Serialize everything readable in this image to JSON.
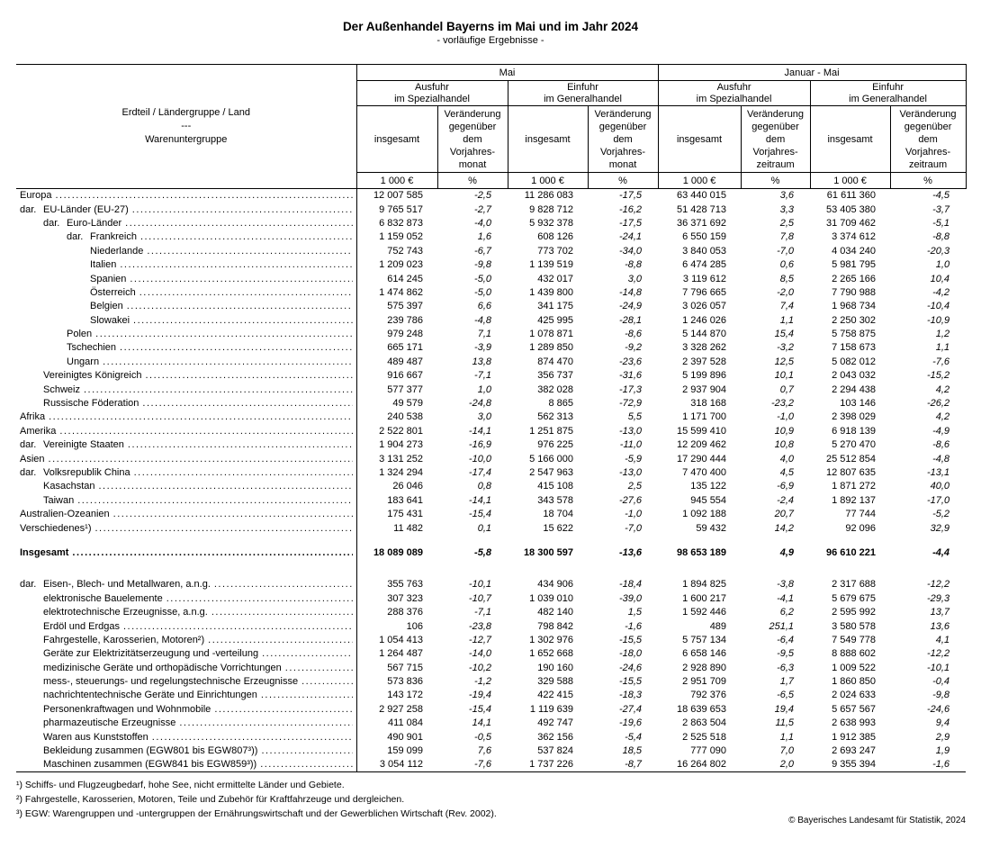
{
  "title": "Der Außenhandel Bayerns im Mai und im Jahr 2024",
  "subtitle": "- vorläufige Ergebnisse -",
  "table": {
    "stub": {
      "line1": "Erdteil / Ländergruppe / Land",
      "line2": "---",
      "line3": "Warenuntergruppe"
    },
    "insgesamt_header": "insgesamt",
    "units": {
      "amount": "1 000 €",
      "percent": "%"
    },
    "col_groups": [
      {
        "period": "Mai",
        "flows": [
          "Ausfuhr\nim Spezialhandel",
          "Einfuhr\nim Generalhandel"
        ],
        "change_header": "Veränderung\ngegenüber\ndem\nVorjahres-\nmonat"
      },
      {
        "period": "Januar - Mai",
        "flows": [
          "Ausfuhr\nim Spezialhandel",
          "Einfuhr\nim Generalhandel"
        ],
        "change_header": "Veränderung\ngegenüber\ndem\nVorjahres-\nzeitraum"
      }
    ],
    "country_rows": [
      {
        "indent": 0,
        "dar": false,
        "label": "Europa",
        "values": [
          "12 007 585",
          "-2,5",
          "11 286 083",
          "-17,5",
          "63 440 015",
          "3,6",
          "61 611 360",
          "-4,5"
        ]
      },
      {
        "indent": 1,
        "dar": true,
        "label": "EU-Länder (EU-27)",
        "values": [
          "9 765 517",
          "-2,7",
          "9 828 712",
          "-16,2",
          "51 428 713",
          "3,3",
          "53 405 380",
          "-3,7"
        ]
      },
      {
        "indent": 2,
        "dar": true,
        "label": "Euro-Länder",
        "values": [
          "6 832 873",
          "-4,0",
          "5 932 378",
          "-17,5",
          "36 371 692",
          "2,5",
          "31 709 462",
          "-5,1"
        ]
      },
      {
        "indent": 3,
        "dar": true,
        "label": "Frankreich",
        "values": [
          "1 159 052",
          "1,6",
          "608 126",
          "-24,1",
          "6 550 159",
          "7,8",
          "3 374 612",
          "-8,8"
        ]
      },
      {
        "indent": 3,
        "dar": false,
        "label": "Niederlande",
        "values": [
          "752 743",
          "-6,7",
          "773 702",
          "-34,0",
          "3 840 053",
          "-7,0",
          "4 034 240",
          "-20,3"
        ]
      },
      {
        "indent": 3,
        "dar": false,
        "label": "Italien",
        "values": [
          "1 209 023",
          "-9,8",
          "1 139 519",
          "-8,8",
          "6 474 285",
          "0,6",
          "5 981 795",
          "1,0"
        ]
      },
      {
        "indent": 3,
        "dar": false,
        "label": "Spanien",
        "values": [
          "614 245",
          "-5,0",
          "432 017",
          "3,0",
          "3 119 612",
          "8,5",
          "2 265 166",
          "10,4"
        ]
      },
      {
        "indent": 3,
        "dar": false,
        "label": "Österreich",
        "values": [
          "1 474 862",
          "-5,0",
          "1 439 800",
          "-14,8",
          "7 796 665",
          "-2,0",
          "7 790 988",
          "-4,2"
        ]
      },
      {
        "indent": 3,
        "dar": false,
        "label": "Belgien",
        "values": [
          "575 397",
          "6,6",
          "341 175",
          "-24,9",
          "3 026 057",
          "7,4",
          "1 968 734",
          "-10,4"
        ]
      },
      {
        "indent": 3,
        "dar": false,
        "label": "Slowakei",
        "values": [
          "239 786",
          "-4,8",
          "425 995",
          "-28,1",
          "1 246 026",
          "1,1",
          "2 250 302",
          "-10,9"
        ]
      },
      {
        "indent": 2,
        "dar": false,
        "label": "Polen",
        "values": [
          "979 248",
          "7,1",
          "1 078 871",
          "-8,6",
          "5 144 870",
          "15,4",
          "5 758 875",
          "1,2"
        ]
      },
      {
        "indent": 2,
        "dar": false,
        "label": "Tschechien",
        "values": [
          "665 171",
          "-3,9",
          "1 289 850",
          "-9,2",
          "3 328 262",
          "-3,2",
          "7 158 673",
          "1,1"
        ]
      },
      {
        "indent": 2,
        "dar": false,
        "label": "Ungarn",
        "values": [
          "489 487",
          "13,8",
          "874 470",
          "-23,6",
          "2 397 528",
          "12,5",
          "5 082 012",
          "-7,6"
        ]
      },
      {
        "indent": 1,
        "dar": false,
        "label": "Vereinigtes Königreich",
        "values": [
          "916 667",
          "-7,1",
          "356 737",
          "-31,6",
          "5 199 896",
          "10,1",
          "2 043 032",
          "-15,2"
        ]
      },
      {
        "indent": 1,
        "dar": false,
        "label": "Schweiz",
        "values": [
          "577 377",
          "1,0",
          "382 028",
          "-17,3",
          "2 937 904",
          "0,7",
          "2 294 438",
          "4,2"
        ]
      },
      {
        "indent": 1,
        "dar": false,
        "label": "Russische Föderation",
        "values": [
          "49 579",
          "-24,8",
          "8 865",
          "-72,9",
          "318 168",
          "-23,2",
          "103 146",
          "-26,2"
        ]
      },
      {
        "indent": 0,
        "dar": false,
        "label": "Afrika",
        "values": [
          "240 538",
          "3,0",
          "562 313",
          "5,5",
          "1 171 700",
          "-1,0",
          "2 398 029",
          "4,2"
        ]
      },
      {
        "indent": 0,
        "dar": false,
        "label": "Amerika",
        "values": [
          "2 522 801",
          "-14,1",
          "1 251 875",
          "-13,0",
          "15 599 410",
          "10,9",
          "6 918 139",
          "-4,9"
        ]
      },
      {
        "indent": 1,
        "dar": true,
        "label": "Vereinigte Staaten",
        "values": [
          "1 904 273",
          "-16,9",
          "976 225",
          "-11,0",
          "12 209 462",
          "10,8",
          "5 270 470",
          "-8,6"
        ]
      },
      {
        "indent": 0,
        "dar": false,
        "label": "Asien",
        "values": [
          "3 131 252",
          "-10,0",
          "5 166 000",
          "-5,9",
          "17 290 444",
          "4,0",
          "25 512 854",
          "-4,8"
        ]
      },
      {
        "indent": 1,
        "dar": true,
        "label": "Volksrepublik China",
        "values": [
          "1 324 294",
          "-17,4",
          "2 547 963",
          "-13,0",
          "7 470 400",
          "4,5",
          "12 807 635",
          "-13,1"
        ]
      },
      {
        "indent": 1,
        "dar": false,
        "label": "Kasachstan",
        "values": [
          "26 046",
          "0,8",
          "415 108",
          "2,5",
          "135 122",
          "-6,9",
          "1 871 272",
          "40,0"
        ]
      },
      {
        "indent": 1,
        "dar": false,
        "label": "Taiwan",
        "values": [
          "183 641",
          "-14,1",
          "343 578",
          "-27,6",
          "945 554",
          "-2,4",
          "1 892 137",
          "-17,0"
        ]
      },
      {
        "indent": 0,
        "dar": false,
        "label": "Australien-Ozeanien",
        "values": [
          "175 431",
          "-15,4",
          "18 704",
          "-1,0",
          "1 092 188",
          "20,7",
          "77 744",
          "-5,2"
        ]
      },
      {
        "indent": 0,
        "dar": false,
        "label": "Verschiedenes¹)",
        "values": [
          "11 482",
          "0,1",
          "15 622",
          "-7,0",
          "59 432",
          "14,2",
          "92 096",
          "32,9"
        ]
      }
    ],
    "total_row": {
      "indent": 0,
      "dar": false,
      "label": "Insgesamt",
      "values": [
        "18 089 089",
        "-5,8",
        "18 300 597",
        "-13,6",
        "98 653 189",
        "4,9",
        "96 610 221",
        "-4,4"
      ]
    },
    "commodity_rows": [
      {
        "indent": 1,
        "dar": true,
        "label": "Eisen-, Blech- und Metallwaren, a.n.g.",
        "values": [
          "355 763",
          "-10,1",
          "434 906",
          "-18,4",
          "1 894 825",
          "-3,8",
          "2 317 688",
          "-12,2"
        ]
      },
      {
        "indent": 1,
        "dar": false,
        "label": "elektronische Bauelemente",
        "values": [
          "307 323",
          "-10,7",
          "1 039 010",
          "-39,0",
          "1 600 217",
          "-4,1",
          "5 679 675",
          "-29,3"
        ]
      },
      {
        "indent": 1,
        "dar": false,
        "label": "elektrotechnische Erzeugnisse, a.n.g.",
        "values": [
          "288 376",
          "-7,1",
          "482 140",
          "1,5",
          "1 592 446",
          "6,2",
          "2 595 992",
          "13,7"
        ]
      },
      {
        "indent": 1,
        "dar": false,
        "label": "Erdöl und Erdgas",
        "values": [
          "106",
          "-23,8",
          "798 842",
          "-1,6",
          "489",
          "251,1",
          "3 580 578",
          "13,6"
        ]
      },
      {
        "indent": 1,
        "dar": false,
        "label": "Fahrgestelle, Karosserien, Motoren²)",
        "values": [
          "1 054 413",
          "-12,7",
          "1 302 976",
          "-15,5",
          "5 757 134",
          "-6,4",
          "7 549 778",
          "4,1"
        ]
      },
      {
        "indent": 1,
        "dar": false,
        "label": "Geräte zur Elektrizitätserzeugung und -verteilung",
        "values": [
          "1 264 487",
          "-14,0",
          "1 652 668",
          "-18,0",
          "6 658 146",
          "-9,5",
          "8 888 602",
          "-12,2"
        ]
      },
      {
        "indent": 1,
        "dar": false,
        "label": "medizinische Geräte und orthopädische Vorrichtungen",
        "values": [
          "567 715",
          "-10,2",
          "190 160",
          "-24,6",
          "2 928 890",
          "-6,3",
          "1 009 522",
          "-10,1"
        ]
      },
      {
        "indent": 1,
        "dar": false,
        "label": "mess-, steuerungs- und regelungstechnische Erzeugnisse",
        "values": [
          "573 836",
          "-1,2",
          "329 588",
          "-15,5",
          "2 951 709",
          "1,7",
          "1 860 850",
          "-0,4"
        ]
      },
      {
        "indent": 1,
        "dar": false,
        "label": "nachrichtentechnische Geräte und Einrichtungen",
        "values": [
          "143 172",
          "-19,4",
          "422 415",
          "-18,3",
          "792 376",
          "-6,5",
          "2 024 633",
          "-9,8"
        ]
      },
      {
        "indent": 1,
        "dar": false,
        "label": "Personenkraftwagen und Wohnmobile",
        "values": [
          "2 927 258",
          "-15,4",
          "1 119 639",
          "-27,4",
          "18 639 653",
          "19,4",
          "5 657 567",
          "-24,6"
        ]
      },
      {
        "indent": 1,
        "dar": false,
        "label": "pharmazeutische Erzeugnisse",
        "values": [
          "411 084",
          "14,1",
          "492 747",
          "-19,6",
          "2 863 504",
          "11,5",
          "2 638 993",
          "9,4"
        ]
      },
      {
        "indent": 1,
        "dar": false,
        "label": "Waren aus Kunststoffen",
        "values": [
          "490 901",
          "-0,5",
          "362 156",
          "-5,4",
          "2 525 518",
          "1,1",
          "1 912 385",
          "2,9"
        ]
      },
      {
        "indent": 1,
        "dar": false,
        "label": "Bekleidung zusammen (EGW801 bis EGW807³))",
        "values": [
          "159 099",
          "7,6",
          "537 824",
          "18,5",
          "777 090",
          "7,0",
          "2 693 247",
          "1,9"
        ]
      },
      {
        "indent": 1,
        "dar": false,
        "label": "Maschinen zusammen (EGW841 bis EGW859³))",
        "values": [
          "3 054 112",
          "-7,6",
          "1 737 226",
          "-8,7",
          "16 264 802",
          "2,0",
          "9 355 394",
          "-1,6"
        ]
      }
    ],
    "dar_prefix": "dar."
  },
  "footnotes": [
    "¹) Schiffs- und Flugzeugbedarf, hohe See, nicht ermittelte Länder und Gebiete.",
    "²) Fahrgestelle, Karosserien, Motoren, Teile und Zubehör für Kraftfahrzeuge und dergleichen.",
    "³) EGW: Warengruppen und -untergruppen der Ernährungswirtschaft und der Gewerblichen Wirtschaft (Rev. 2002)."
  ],
  "copyright": "© Bayerisches Landesamt für Statistik, 2024"
}
